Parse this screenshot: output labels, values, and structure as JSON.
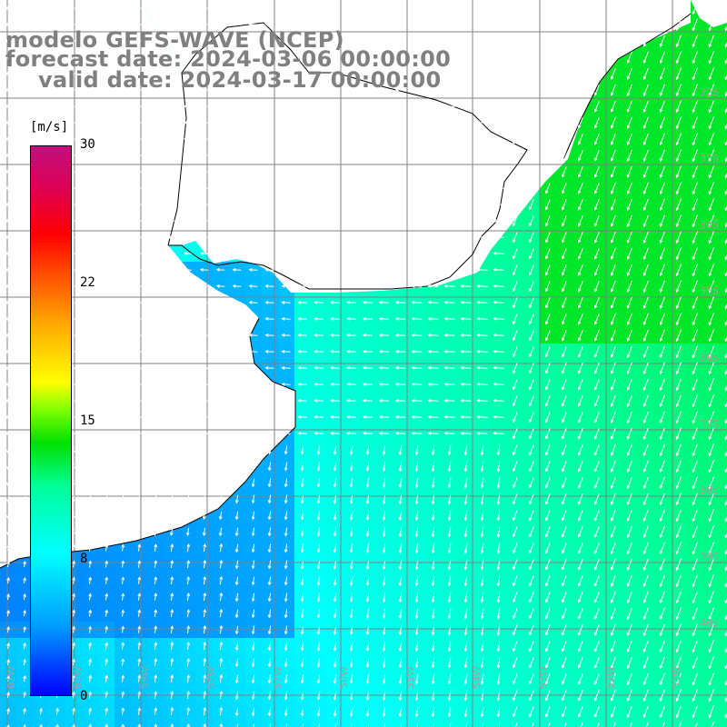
{
  "title": {
    "line1": "modelo GEFS-WAVE (NCEP)",
    "line2": "forecast date: 2024-03-06 00:00:00",
    "line3": "valid date: 2024-03-17 00:00:00"
  },
  "colorbar": {
    "unit": "[m/s]",
    "ticks": [
      "30",
      "22",
      "15",
      "8",
      "0"
    ],
    "tick_values": [
      30,
      22,
      15,
      8,
      0
    ],
    "range": [
      0,
      30
    ],
    "colors": [
      "#0000ff",
      "#00a0ff",
      "#00ffff",
      "#00ff9a",
      "#00e000",
      "#80ff00",
      "#ffff00",
      "#ffa500",
      "#ff0000",
      "#c01080"
    ]
  },
  "axes": {
    "lat_labels": [
      "32S",
      "33S",
      "34S",
      "35S",
      "36S",
      "37S",
      "38S",
      "39S",
      "40S"
    ],
    "lon_labels": [
      "61W",
      "60W",
      "59W",
      "58W",
      "57W",
      "56W",
      "55W",
      "54W",
      "53W",
      "52W",
      "51W"
    ]
  },
  "colors": {
    "land": "#ffffff",
    "grid": "#808080",
    "coast": "#000000",
    "arrows": "#ffffff"
  }
}
